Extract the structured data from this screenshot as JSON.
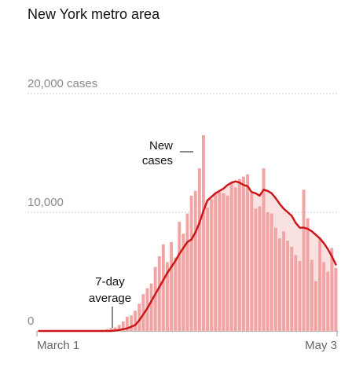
{
  "title": "New York metro area",
  "chart_data": {
    "type": "bar",
    "title": "New York metro area",
    "xlabel": "",
    "ylabel": "",
    "ylim": [
      0,
      20000
    ],
    "yticks": [
      0,
      10000,
      20000
    ],
    "ytick_labels": [
      "0",
      "10,000",
      "20,000 cases"
    ],
    "xtick_labels": [
      "March 1",
      "May 3"
    ],
    "grid": true,
    "x_start": "2020-02-20",
    "x_end": "2020-05-04",
    "series": [
      {
        "name": "New cases",
        "values": [
          0,
          0,
          0,
          0,
          0,
          0,
          0,
          0,
          0,
          0,
          0,
          0,
          0,
          0,
          0,
          0,
          100,
          150,
          250,
          300,
          500,
          800,
          1200,
          1300,
          1700,
          2300,
          3100,
          3600,
          4000,
          5400,
          6300,
          7300,
          5800,
          7500,
          6200,
          9200,
          8200,
          9900,
          11400,
          11800,
          13700,
          16500,
          10400,
          11100,
          11600,
          11700,
          11600,
          11400,
          12500,
          12100,
          12800,
          13000,
          13200,
          11600,
          10300,
          10500,
          13700,
          10000,
          9900,
          8700,
          7800,
          8400,
          7600,
          7100,
          6400,
          5900,
          11900,
          9500,
          6000,
          4200,
          7800,
          5800,
          5000,
          7000,
          5300
        ],
        "color": "#f2a3a3"
      },
      {
        "name": "7-day average",
        "values": [
          0,
          0,
          0,
          0,
          0,
          0,
          0,
          0,
          0,
          0,
          0,
          0,
          0,
          0,
          0,
          0,
          0,
          0,
          0,
          40,
          80,
          150,
          220,
          350,
          500,
          900,
          1400,
          1900,
          2500,
          3100,
          3700,
          4300,
          4900,
          5400,
          5900,
          6500,
          7000,
          7500,
          7700,
          8300,
          9100,
          10100,
          11000,
          11300,
          11600,
          11800,
          12000,
          12300,
          12500,
          12600,
          12500,
          12300,
          12200,
          11700,
          11600,
          11400,
          11900,
          11800,
          11600,
          11200,
          10700,
          10300,
          10000,
          9700,
          9100,
          8700,
          8700,
          8600,
          8400,
          8100,
          7800,
          7400,
          6900,
          6300,
          5600
        ],
        "color": "#cc1719"
      }
    ],
    "annotations": [
      {
        "label": "New cases",
        "lines": [
          "New",
          "cases"
        ]
      },
      {
        "label": "7-day average",
        "lines": [
          "7-day",
          "average"
        ]
      }
    ]
  }
}
